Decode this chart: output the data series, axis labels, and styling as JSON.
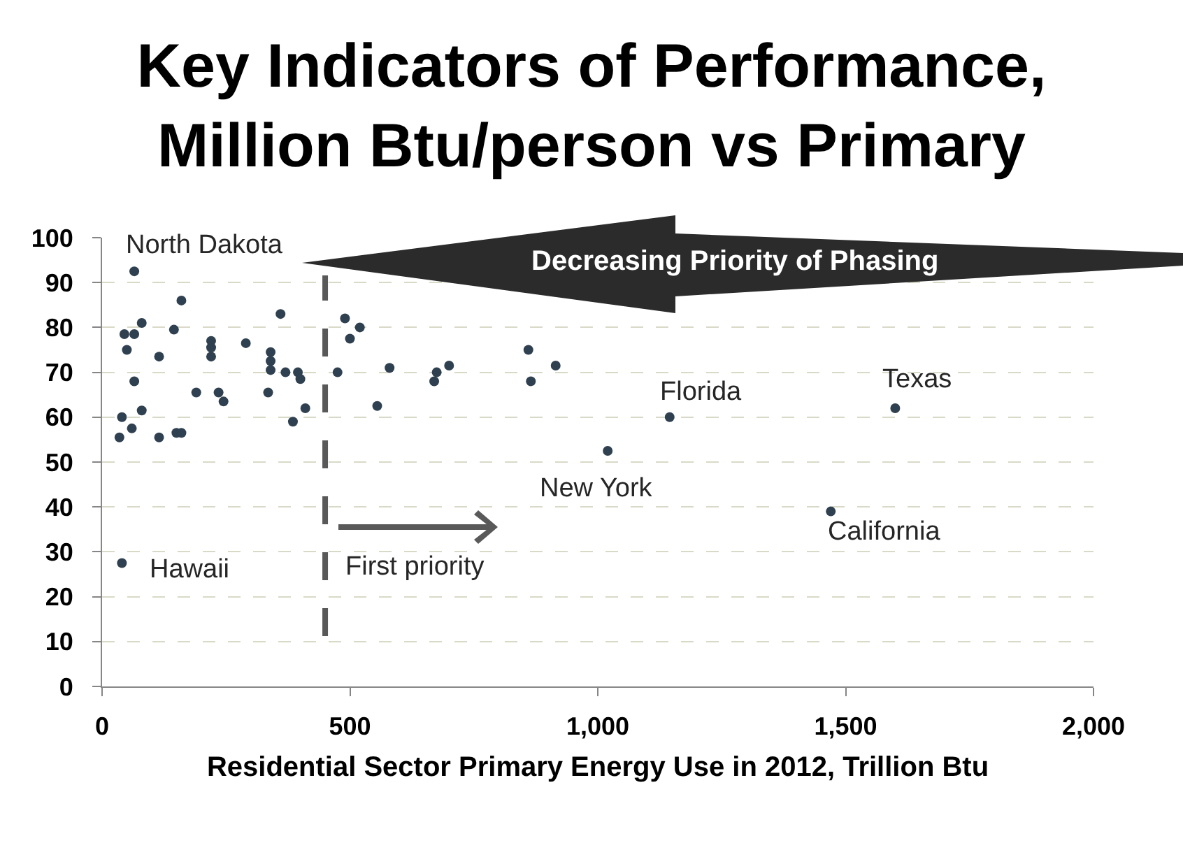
{
  "chart_data": {
    "type": "scatter",
    "title": "Key Indicators of Performance, Million Btu/person vs Primary",
    "xlabel": "Residential Sector Primary Energy Use in 2012, Trillion Btu",
    "xlim": [
      0,
      2000
    ],
    "xticks": [
      0,
      500,
      {
        "value": 1000,
        "label": "1,000"
      },
      {
        "value": 1500,
        "label": "1,500"
      },
      {
        "value": 2000,
        "label": "2,000"
      }
    ],
    "ylim": [
      0,
      100
    ],
    "yticks": [
      0,
      10,
      20,
      30,
      40,
      50,
      60,
      70,
      80,
      90,
      100
    ],
    "grid": "y",
    "marker": "circle",
    "series": [
      {
        "color": "#2f4050",
        "x": [
          65,
          160,
          45,
          65,
          80,
          145,
          50,
          115,
          220,
          220,
          220,
          290,
          360,
          340,
          340,
          340,
          370,
          395,
          400,
          65,
          190,
          235,
          245,
          335,
          410,
          385,
          80,
          40,
          60,
          35,
          115,
          150,
          160,
          40,
          490,
          520,
          500,
          475,
          555,
          580,
          670,
          675,
          700,
          860,
          865,
          915,
          1020,
          1145,
          1600,
          1470
        ],
        "values": [
          92.5,
          86,
          78.5,
          78.5,
          81,
          79.5,
          75,
          73.5,
          77,
          75.5,
          73.5,
          76.5,
          83,
          74.5,
          72.5,
          70.5,
          70,
          70,
          68.5,
          68,
          65.5,
          65.5,
          63.5,
          65.5,
          62,
          59,
          61.5,
          60,
          57.5,
          55.5,
          55.5,
          56.5,
          56.5,
          27.5,
          82,
          80,
          77.5,
          70,
          62.5,
          71,
          68,
          70,
          71.5,
          75,
          68,
          71.5,
          52.5,
          60,
          62,
          39
        ]
      }
    ],
    "ref_lines": [
      {
        "axis": "x",
        "value": 450,
        "color": "#595959",
        "line_style": "dashed"
      }
    ],
    "annotations": [
      "Decreasing Priority of Phasing",
      "First priority",
      {
        "text": "North Dakota",
        "x": 65,
        "y": 92.5
      },
      {
        "text": "Hawaii",
        "x": 40,
        "y": 27.5
      },
      {
        "text": "New York",
        "x": 1020,
        "y": 52.5
      },
      {
        "text": "Florida",
        "x": 1145,
        "y": 60
      },
      {
        "text": "Texas",
        "x": 1600,
        "y": 62
      },
      {
        "text": "California",
        "x": 1470,
        "y": 39
      }
    ]
  }
}
